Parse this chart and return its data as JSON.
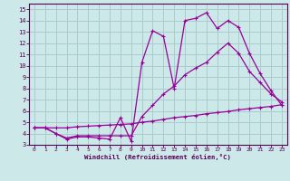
{
  "line1_x": [
    0,
    1,
    2,
    3,
    4,
    5,
    6,
    7,
    8,
    9,
    10,
    11,
    12,
    13,
    14,
    15,
    16,
    17,
    18,
    19,
    20,
    21,
    22,
    23
  ],
  "line1_y": [
    4.5,
    4.5,
    4.0,
    3.5,
    3.7,
    3.7,
    3.6,
    3.5,
    5.4,
    3.3,
    10.3,
    13.1,
    12.6,
    8.0,
    14.0,
    14.2,
    14.7,
    13.3,
    14.0,
    13.4,
    11.1,
    9.3,
    7.8,
    6.5
  ],
  "line2_x": [
    0,
    1,
    2,
    3,
    4,
    5,
    6,
    7,
    8,
    9,
    10,
    11,
    12,
    13,
    14,
    15,
    16,
    17,
    18,
    19,
    20,
    21,
    22,
    23
  ],
  "line2_y": [
    4.5,
    4.5,
    4.0,
    3.6,
    3.8,
    3.8,
    3.8,
    3.8,
    3.8,
    3.8,
    5.5,
    6.5,
    7.5,
    8.2,
    9.2,
    9.8,
    10.3,
    11.2,
    12.0,
    11.1,
    9.5,
    8.5,
    7.5,
    6.8
  ],
  "line3_x": [
    0,
    1,
    2,
    3,
    4,
    5,
    6,
    7,
    8,
    9,
    10,
    11,
    12,
    13,
    14,
    15,
    16,
    17,
    18,
    19,
    20,
    21,
    22,
    23
  ],
  "line3_y": [
    4.5,
    4.5,
    4.5,
    4.5,
    4.6,
    4.65,
    4.7,
    4.75,
    4.8,
    4.85,
    5.0,
    5.1,
    5.25,
    5.4,
    5.5,
    5.6,
    5.75,
    5.85,
    5.95,
    6.1,
    6.2,
    6.3,
    6.4,
    6.55
  ],
  "line_color": "#990099",
  "bg_color": "#cce8e8",
  "grid_color": "#aacccc",
  "axis_color": "#550055",
  "xlabel": "Windchill (Refroidissement éolien,°C)",
  "xlim": [
    -0.5,
    23.5
  ],
  "ylim": [
    3,
    15.5
  ],
  "xticks": [
    0,
    1,
    2,
    3,
    4,
    5,
    6,
    7,
    8,
    9,
    10,
    11,
    12,
    13,
    14,
    15,
    16,
    17,
    18,
    19,
    20,
    21,
    22,
    23
  ],
  "yticks": [
    3,
    4,
    5,
    6,
    7,
    8,
    9,
    10,
    11,
    12,
    13,
    14,
    15
  ]
}
